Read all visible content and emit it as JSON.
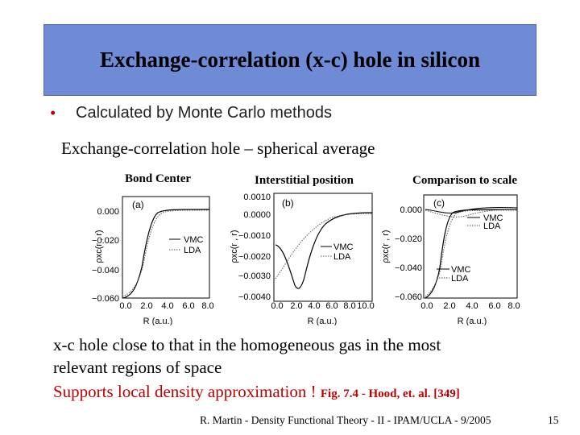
{
  "title": "Exchange-correlation (x-c) hole in silicon",
  "bullet": "Calculated by Monte Carlo methods",
  "subtitle": "Exchange-correlation hole – spherical average",
  "panels": [
    {
      "label": "Bond Center",
      "tag": "(a)",
      "ylabel": "ρxc(r , r)",
      "xlabel": "R (a.u.)",
      "yticks": [
        "0.000",
        "−0.020",
        "−0.040",
        "−0.060"
      ],
      "xticks": [
        "0.0",
        "2.0",
        "4.0",
        "6.0",
        "8.0"
      ],
      "legend": [
        "VMC",
        "LDA"
      ]
    },
    {
      "label": "Interstitial position",
      "tag": "(b)",
      "ylabel": "ρxc(r , r)",
      "xlabel": "R (a.u.)",
      "yticks": [
        "0.0010",
        "0.0000",
        "−0.0010",
        "−0.0020",
        "−0.0030",
        "−0.0040"
      ],
      "xticks": [
        "0.0",
        "2.0",
        "4.0",
        "6.0",
        "8.0",
        "10.0"
      ],
      "legend": [
        "VMC",
        "LDA"
      ]
    },
    {
      "label": "Comparison to scale",
      "tag": "(c)",
      "ylabel": "ρxc(r , r)",
      "xlabel": "R (a.u.)",
      "yticks": [
        "0.000",
        "−0.020",
        "−0.040",
        "−0.060"
      ],
      "xticks": [
        "0.0",
        "2.0",
        "4.0",
        "6.0",
        "8.0"
      ],
      "legend": [
        "VMC",
        "LDA"
      ]
    }
  ],
  "notes": {
    "line1": "x-c hole close to that in the homogeneous gas in the most",
    "line2": "relevant regions of space",
    "line3": "Supports local density approximation !",
    "ref": "Fig. 7.4 - Hood, et. al. [349]"
  },
  "footer": "R. Martin - Density Functional Theory - II - IPAM/UCLA - 9/2005",
  "page_number": "15",
  "colors": {
    "title_bg": "#6f8bd6",
    "accent_red": "#c00000"
  }
}
